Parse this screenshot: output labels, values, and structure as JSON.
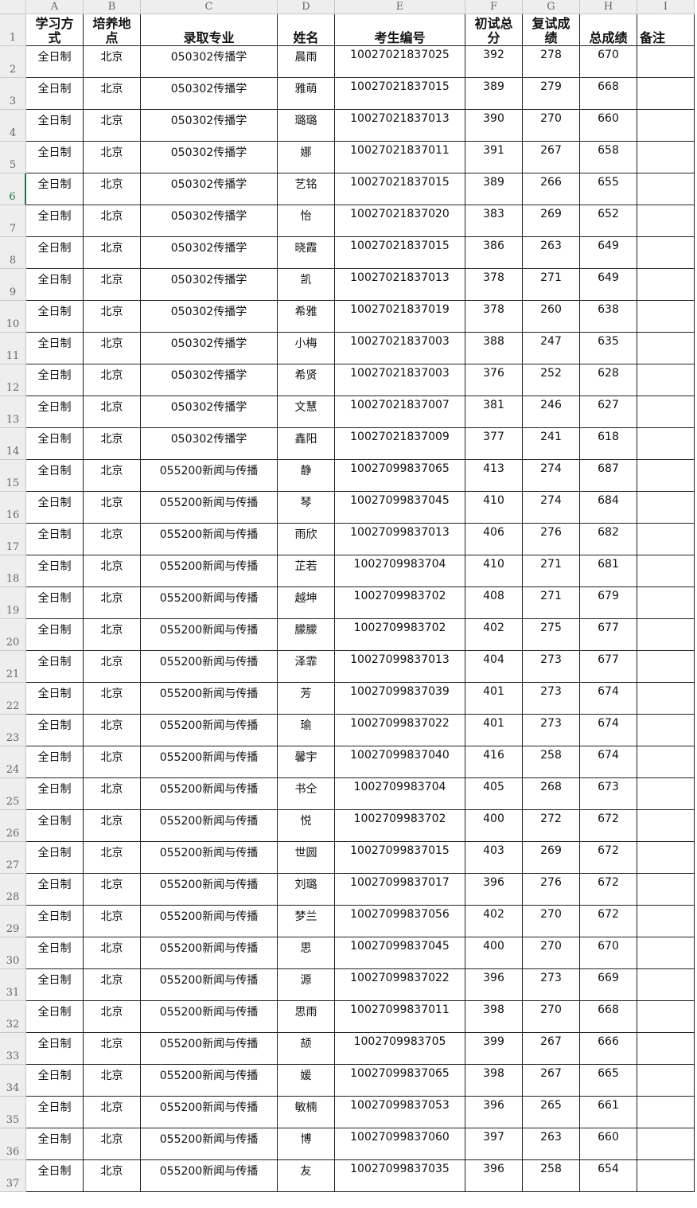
{
  "column_letters": [
    "A",
    "B",
    "C",
    "D",
    "E",
    "F",
    "G",
    "H",
    "I"
  ],
  "row_numbers": [
    1,
    2,
    3,
    4,
    5,
    6,
    7,
    8,
    9,
    10,
    11,
    12,
    13,
    14,
    15,
    16,
    17,
    18,
    19,
    20,
    21,
    22,
    23,
    24,
    25,
    26,
    27,
    28,
    29,
    30,
    31,
    32,
    33,
    34,
    35,
    36,
    37
  ],
  "header": [
    "学习方式",
    "培养地点",
    "录取专业",
    "姓名",
    "考生编号",
    "初试总分",
    "复试成绩",
    "总成绩",
    "备注"
  ],
  "rows": [
    [
      "全日制",
      "北京",
      "050302传播学",
      "晨雨",
      "10027021837025",
      392,
      278,
      670
    ],
    [
      "全日制",
      "北京",
      "050302传播学",
      "雅萌",
      "10027021837015",
      389,
      279,
      668
    ],
    [
      "全日制",
      "北京",
      "050302传播学",
      "璐璐",
      "10027021837013",
      390,
      270,
      660
    ],
    [
      "全日制",
      "北京",
      "050302传播学",
      "娜",
      "10027021837011",
      391,
      267,
      658
    ],
    [
      "全日制",
      "北京",
      "050302传播学",
      "艺铭",
      "10027021837015",
      389,
      266,
      655
    ],
    [
      "全日制",
      "北京",
      "050302传播学",
      "怡",
      "10027021837020",
      383,
      269,
      652
    ],
    [
      "全日制",
      "北京",
      "050302传播学",
      "晓霞",
      "10027021837015",
      386,
      263,
      649
    ],
    [
      "全日制",
      "北京",
      "050302传播学",
      "凯",
      "10027021837013",
      378,
      271,
      649
    ],
    [
      "全日制",
      "北京",
      "050302传播学",
      "希雅",
      "10027021837019",
      378,
      260,
      638
    ],
    [
      "全日制",
      "北京",
      "050302传播学",
      "小梅",
      "10027021837003",
      388,
      247,
      635
    ],
    [
      "全日制",
      "北京",
      "050302传播学",
      "希贤",
      "10027021837003",
      376,
      252,
      628
    ],
    [
      "全日制",
      "北京",
      "050302传播学",
      "文慧",
      "10027021837007",
      381,
      246,
      627
    ],
    [
      "全日制",
      "北京",
      "050302传播学",
      "鑫阳",
      "10027021837009",
      377,
      241,
      618
    ],
    [
      "全日制",
      "北京",
      "055200新闻与传播",
      "静",
      "10027099837065",
      413,
      274,
      687
    ],
    [
      "全日制",
      "北京",
      "055200新闻与传播",
      "琴",
      "10027099837045",
      410,
      274,
      684
    ],
    [
      "全日制",
      "北京",
      "055200新闻与传播",
      "雨欣",
      "10027099837013",
      406,
      276,
      682
    ],
    [
      "全日制",
      "北京",
      "055200新闻与传播",
      "芷若",
      "1002709983704",
      410,
      271,
      681
    ],
    [
      "全日制",
      "北京",
      "055200新闻与传播",
      "越坤",
      "1002709983702",
      408,
      271,
      679
    ],
    [
      "全日制",
      "北京",
      "055200新闻与传播",
      "朦朦",
      "1002709983702",
      402,
      275,
      677
    ],
    [
      "全日制",
      "北京",
      "055200新闻与传播",
      "泽霏",
      "10027099837013",
      404,
      273,
      677
    ],
    [
      "全日制",
      "北京",
      "055200新闻与传播",
      "芳",
      "10027099837039",
      401,
      273,
      674
    ],
    [
      "全日制",
      "北京",
      "055200新闻与传播",
      "瑜",
      "10027099837022",
      401,
      273,
      674
    ],
    [
      "全日制",
      "北京",
      "055200新闻与传播",
      "馨宇",
      "10027099837040",
      416,
      258,
      674
    ],
    [
      "全日制",
      "北京",
      "055200新闻与传播",
      "书仝",
      "1002709983704",
      405,
      268,
      673
    ],
    [
      "全日制",
      "北京",
      "055200新闻与传播",
      "悦",
      "1002709983702",
      400,
      272,
      672
    ],
    [
      "全日制",
      "北京",
      "055200新闻与传播",
      "世圆",
      "10027099837015",
      403,
      269,
      672
    ],
    [
      "全日制",
      "北京",
      "055200新闻与传播",
      "刘璐",
      "10027099837017",
      396,
      276,
      672
    ],
    [
      "全日制",
      "北京",
      "055200新闻与传播",
      "梦兰",
      "10027099837056",
      402,
      270,
      672
    ],
    [
      "全日制",
      "北京",
      "055200新闻与传播",
      "思",
      "10027099837045",
      400,
      270,
      670
    ],
    [
      "全日制",
      "北京",
      "055200新闻与传播",
      "源",
      "10027099837022",
      396,
      273,
      669
    ],
    [
      "全日制",
      "北京",
      "055200新闻与传播",
      "思雨",
      "10027099837011",
      398,
      270,
      668
    ],
    [
      "全日制",
      "北京",
      "055200新闻与传播",
      "颉",
      "1002709983705",
      399,
      267,
      666
    ],
    [
      "全日制",
      "北京",
      "055200新闻与传播",
      "媛",
      "10027099837065",
      398,
      267,
      665
    ],
    [
      "全日制",
      "北京",
      "055200新闻与传播",
      "敏楠",
      "10027099837053",
      396,
      265,
      661
    ],
    [
      "全日制",
      "北京",
      "055200新闻与传播",
      "博",
      "10027099837060",
      397,
      263,
      660
    ],
    [
      "全日制",
      "北京",
      "055200新闻与传播",
      "友",
      "10027099837035",
      396,
      258,
      654
    ]
  ]
}
